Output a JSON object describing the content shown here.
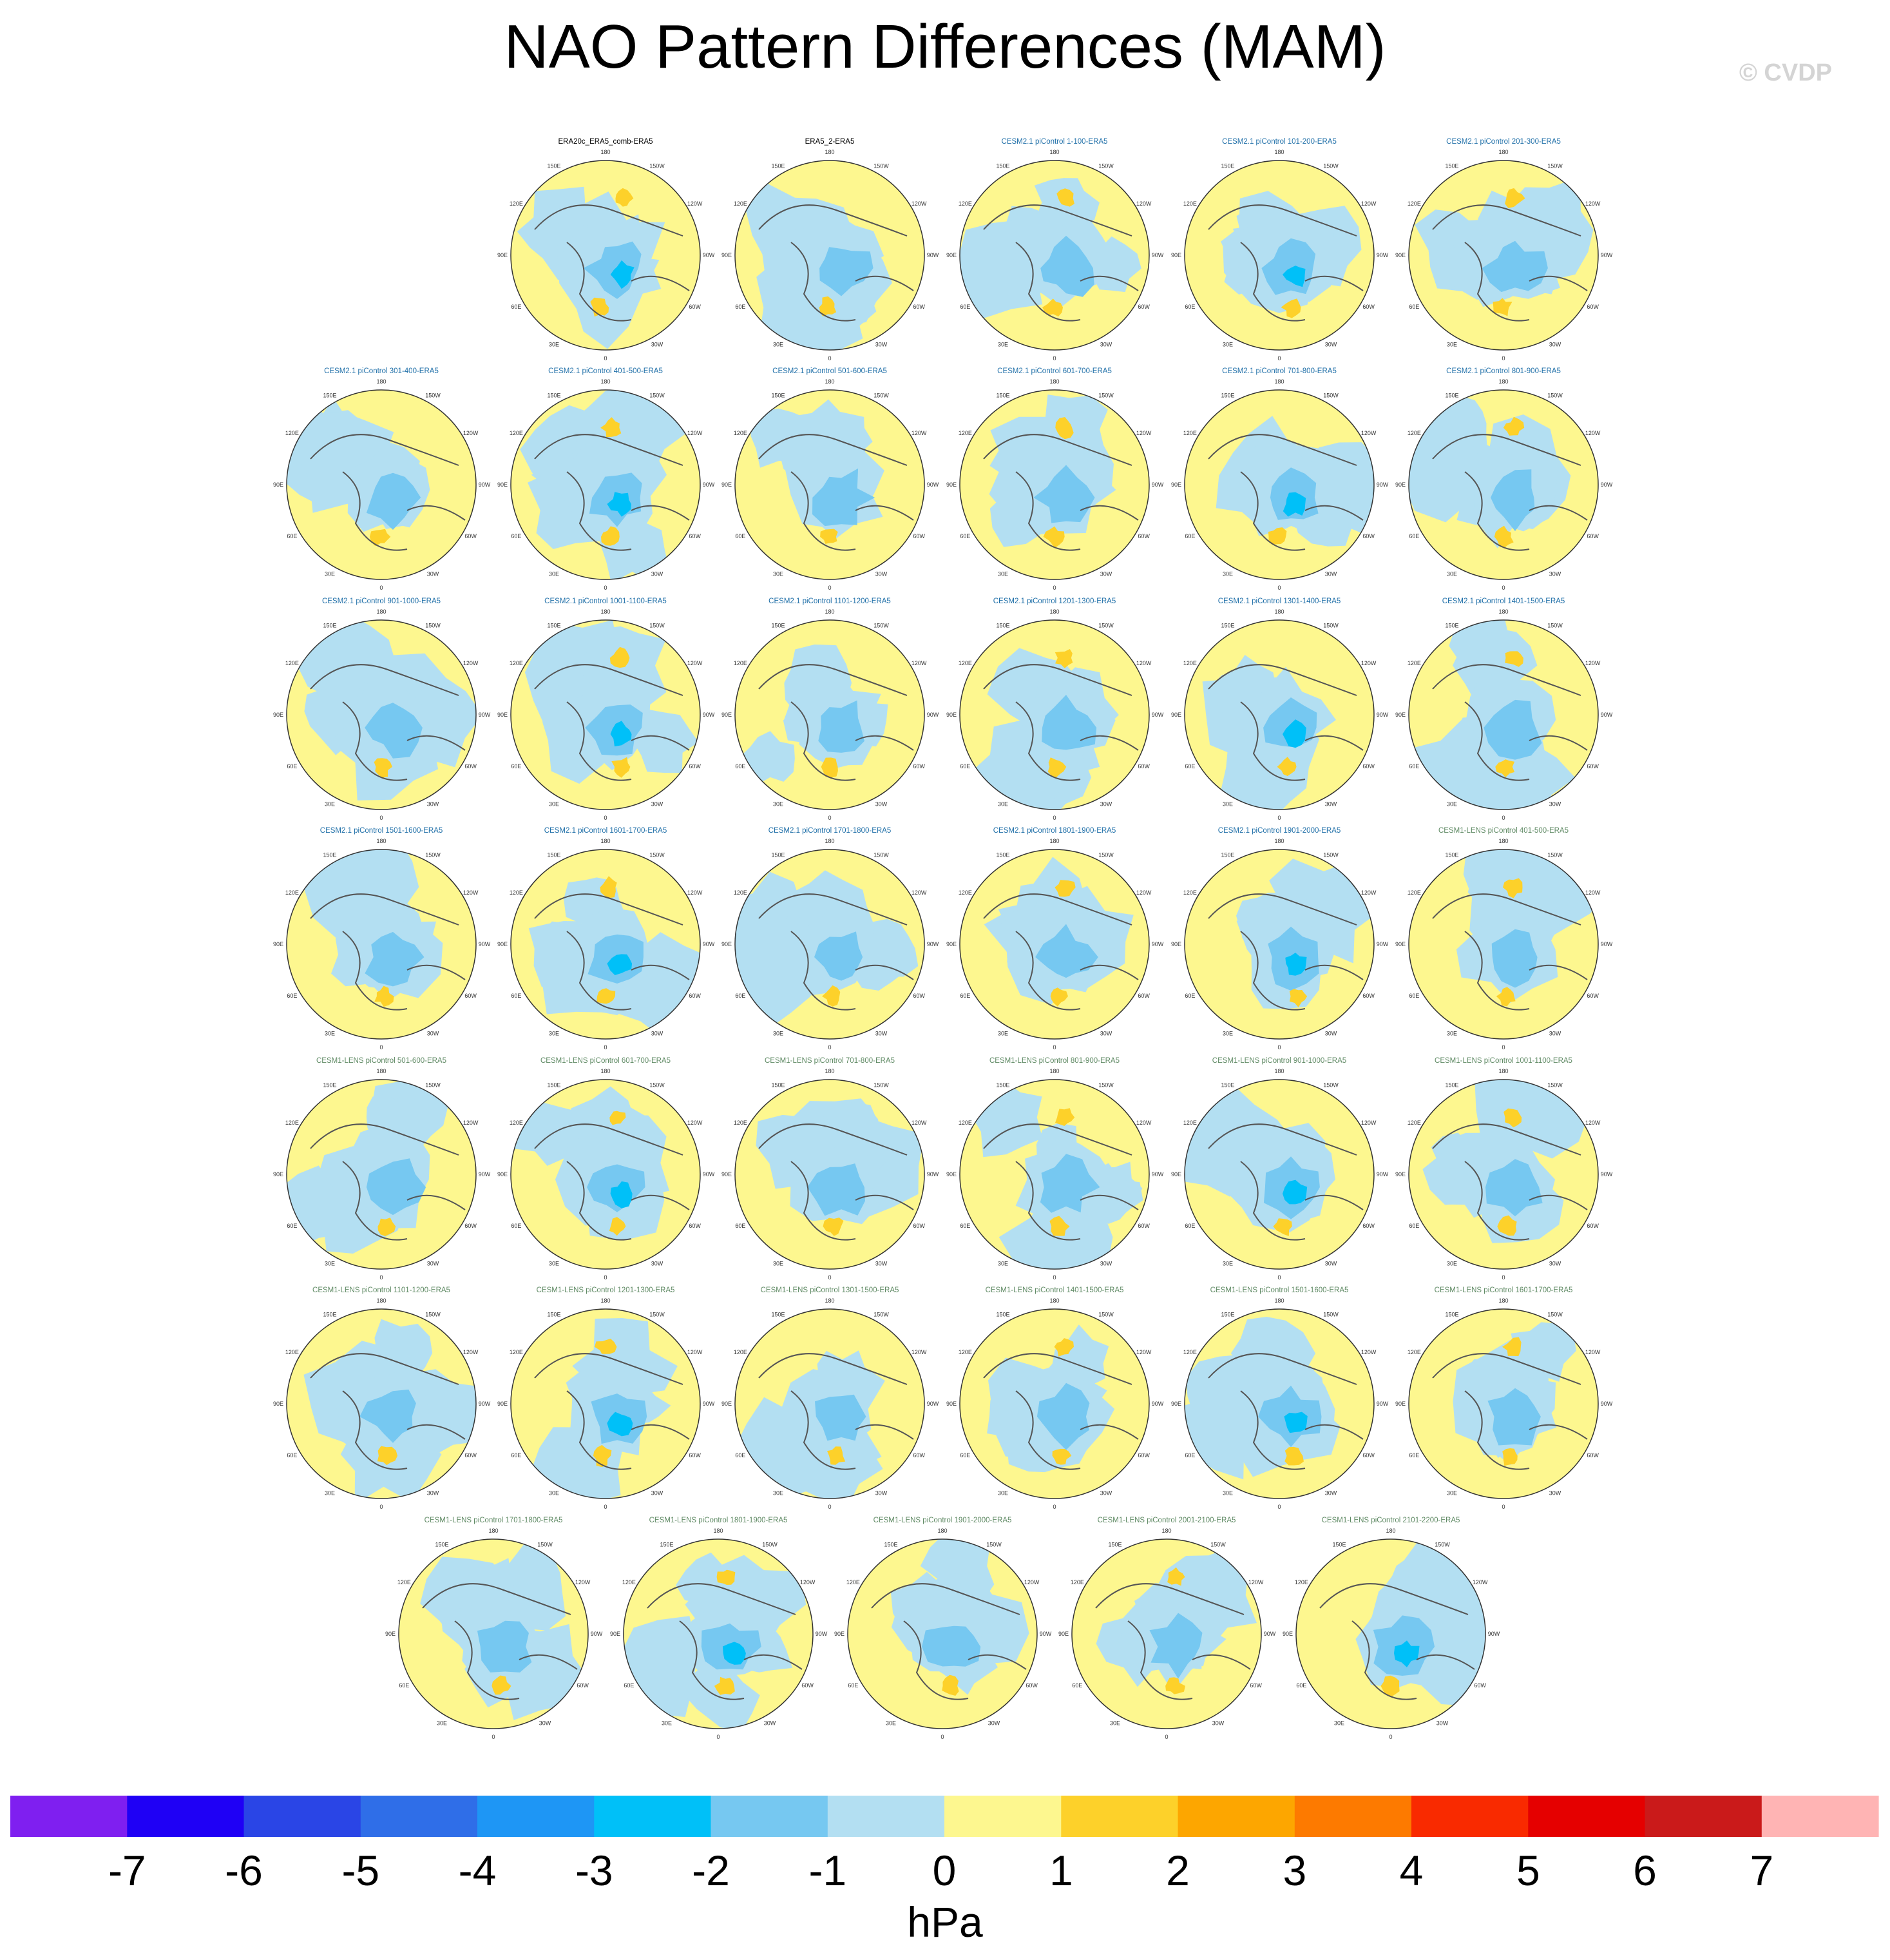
{
  "title": "NAO Pattern Differences (MAM)",
  "watermark": "© CVDP",
  "chart_data": {
    "type": "heatmap",
    "title": "NAO Pattern Differences (MAM)",
    "projection": "polar stereographic (Northern Hemisphere)",
    "longitude_labels": [
      "180",
      "150E",
      "120E",
      "90E",
      "60E",
      "30E",
      "0",
      "30W",
      "60W",
      "90W",
      "120W",
      "150W"
    ],
    "panels": [
      {
        "label": "ERA20c_ERA5_comb-ERA5",
        "color": "#000000"
      },
      {
        "label": "ERA5_2-ERA5",
        "color": "#000000"
      },
      {
        "label": "CESM2.1 piControl 1-100-ERA5",
        "color": "#1f6fa8"
      },
      {
        "label": "CESM2.1 piControl 101-200-ERA5",
        "color": "#1f6fa8"
      },
      {
        "label": "CESM2.1 piControl 201-300-ERA5",
        "color": "#1f6fa8"
      },
      {
        "label": "CESM2.1 piControl 301-400-ERA5",
        "color": "#1f6fa8"
      },
      {
        "label": "CESM2.1 piControl 401-500-ERA5",
        "color": "#1f6fa8"
      },
      {
        "label": "CESM2.1 piControl 501-600-ERA5",
        "color": "#1f6fa8"
      },
      {
        "label": "CESM2.1 piControl 601-700-ERA5",
        "color": "#1f6fa8"
      },
      {
        "label": "CESM2.1 piControl 701-800-ERA5",
        "color": "#1f6fa8"
      },
      {
        "label": "CESM2.1 piControl 801-900-ERA5",
        "color": "#1f6fa8"
      },
      {
        "label": "CESM2.1 piControl 901-1000-ERA5",
        "color": "#1f6fa8"
      },
      {
        "label": "CESM2.1 piControl 1001-1100-ERA5",
        "color": "#1f6fa8"
      },
      {
        "label": "CESM2.1 piControl 1101-1200-ERA5",
        "color": "#1f6fa8"
      },
      {
        "label": "CESM2.1 piControl 1201-1300-ERA5",
        "color": "#1f6fa8"
      },
      {
        "label": "CESM2.1 piControl 1301-1400-ERA5",
        "color": "#1f6fa8"
      },
      {
        "label": "CESM2.1 piControl 1401-1500-ERA5",
        "color": "#1f6fa8"
      },
      {
        "label": "CESM2.1 piControl 1501-1600-ERA5",
        "color": "#1f6fa8"
      },
      {
        "label": "CESM2.1 piControl 1601-1700-ERA5",
        "color": "#1f6fa8"
      },
      {
        "label": "CESM2.1 piControl 1701-1800-ERA5",
        "color": "#1f6fa8"
      },
      {
        "label": "CESM2.1 piControl 1801-1900-ERA5",
        "color": "#1f6fa8"
      },
      {
        "label": "CESM2.1 piControl 1901-2000-ERA5",
        "color": "#1f6fa8"
      },
      {
        "label": "CESM1-LENS piControl 401-500-ERA5",
        "color": "#5f8a64"
      },
      {
        "label": "CESM1-LENS piControl 501-600-ERA5",
        "color": "#5f8a64"
      },
      {
        "label": "CESM1-LENS piControl 601-700-ERA5",
        "color": "#5f8a64"
      },
      {
        "label": "CESM1-LENS piControl 701-800-ERA5",
        "color": "#5f8a64"
      },
      {
        "label": "CESM1-LENS piControl 801-900-ERA5",
        "color": "#5f8a64"
      },
      {
        "label": "CESM1-LENS piControl 901-1000-ERA5",
        "color": "#5f8a64"
      },
      {
        "label": "CESM1-LENS piControl 1001-1100-ERA5",
        "color": "#5f8a64"
      },
      {
        "label": "CESM1-LENS piControl 1101-1200-ERA5",
        "color": "#5f8a64"
      },
      {
        "label": "CESM1-LENS piControl 1201-1300-ERA5",
        "color": "#5f8a64"
      },
      {
        "label": "CESM1-LENS piControl 1301-1500-ERA5",
        "color": "#5f8a64"
      },
      {
        "label": "CESM1-LENS piControl 1401-1500-ERA5",
        "color": "#5f8a64"
      },
      {
        "label": "CESM1-LENS piControl 1501-1600-ERA5",
        "color": "#5f8a64"
      },
      {
        "label": "CESM1-LENS piControl 1601-1700-ERA5",
        "color": "#5f8a64"
      },
      {
        "label": "CESM1-LENS piControl 1701-1800-ERA5",
        "color": "#5f8a64"
      },
      {
        "label": "CESM1-LENS piControl 1801-1900-ERA5",
        "color": "#5f8a64"
      },
      {
        "label": "CESM1-LENS piControl 1901-2000-ERA5",
        "color": "#5f8a64"
      },
      {
        "label": "CESM1-LENS piControl 2001-2100-ERA5",
        "color": "#5f8a64"
      },
      {
        "label": "CESM1-LENS piControl 2101-2200-ERA5",
        "color": "#5f8a64"
      }
    ],
    "colorbar": {
      "unit": "hPa",
      "tick_labels": [
        "-7",
        "-6",
        "-5",
        "-4",
        "-3",
        "-2",
        "-1",
        "0",
        "1",
        "2",
        "3",
        "4",
        "5",
        "6",
        "7"
      ],
      "colors": [
        "#7f1ff0",
        "#1f00f5",
        "#2a45e6",
        "#2f6ee8",
        "#1e96f5",
        "#00c0f8",
        "#76c8f1",
        "#b3dff2",
        "#fdf78f",
        "#fdd12a",
        "#fda600",
        "#fd7a00",
        "#f92a00",
        "#e50000",
        "#ca1a1a",
        "#ffb4b4"
      ]
    }
  }
}
